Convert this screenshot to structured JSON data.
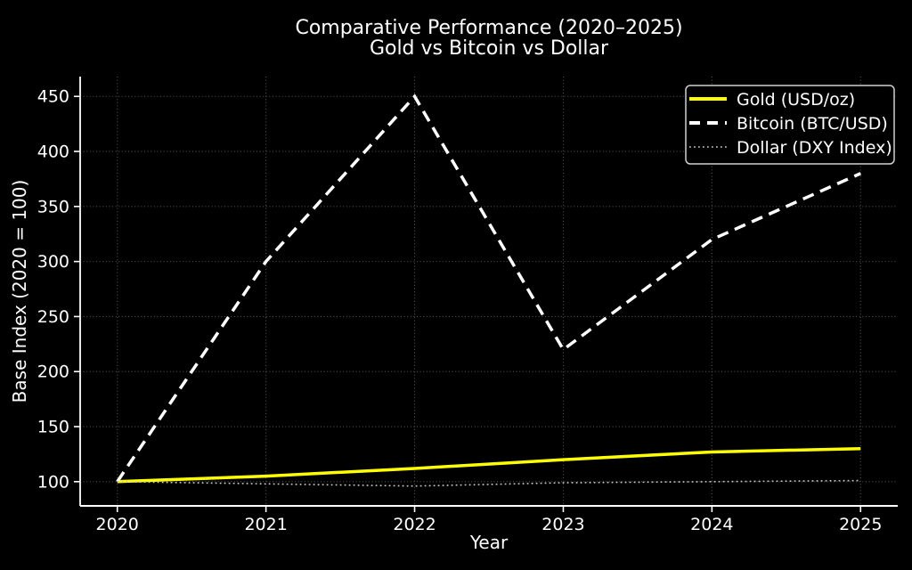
{
  "title": {
    "line1": "Comparative Performance (2020–2025)",
    "line2": "Gold vs Bitcoin vs Dollar"
  },
  "colors": {
    "background": "#000000",
    "text": "#ffffff",
    "grid": "#545454",
    "spine": "#ffffff",
    "gold": "#ffff00",
    "bitcoin": "#ffffff",
    "dollar": "#c8c8c8",
    "legend_border": "#cfcfcf"
  },
  "chart_data": {
    "type": "line",
    "title": "Comparative Performance (2020–2025)\nGold vs Bitcoin vs Dollar",
    "xlabel": "Year",
    "ylabel": "Base Index (2020 = 100)",
    "x": [
      2020,
      2021,
      2022,
      2023,
      2024,
      2025
    ],
    "series": [
      {
        "name": "Gold (USD/oz)",
        "values": [
          100,
          105,
          112,
          120,
          127,
          130
        ],
        "color": "#ffff00",
        "style": "solid",
        "width": 3.5
      },
      {
        "name": "Bitcoin (BTC/USD)",
        "values": [
          100,
          300,
          450,
          220,
          320,
          380
        ],
        "color": "#ffffff",
        "style": "dashed",
        "width": 3.5
      },
      {
        "name": "Dollar (DXY Index)",
        "values": [
          100,
          98,
          96,
          99,
          100,
          101
        ],
        "color": "#c8c8c8",
        "style": "dotted",
        "width": 1.6
      }
    ],
    "yticks": [
      100,
      150,
      200,
      250,
      300,
      350,
      400,
      450
    ],
    "xticks": [
      2020,
      2021,
      2022,
      2023,
      2024,
      2025
    ],
    "xlim": [
      2019.75,
      2025.25
    ],
    "ylim": [
      78,
      468
    ],
    "grid": true,
    "legend_position": "upper right"
  }
}
